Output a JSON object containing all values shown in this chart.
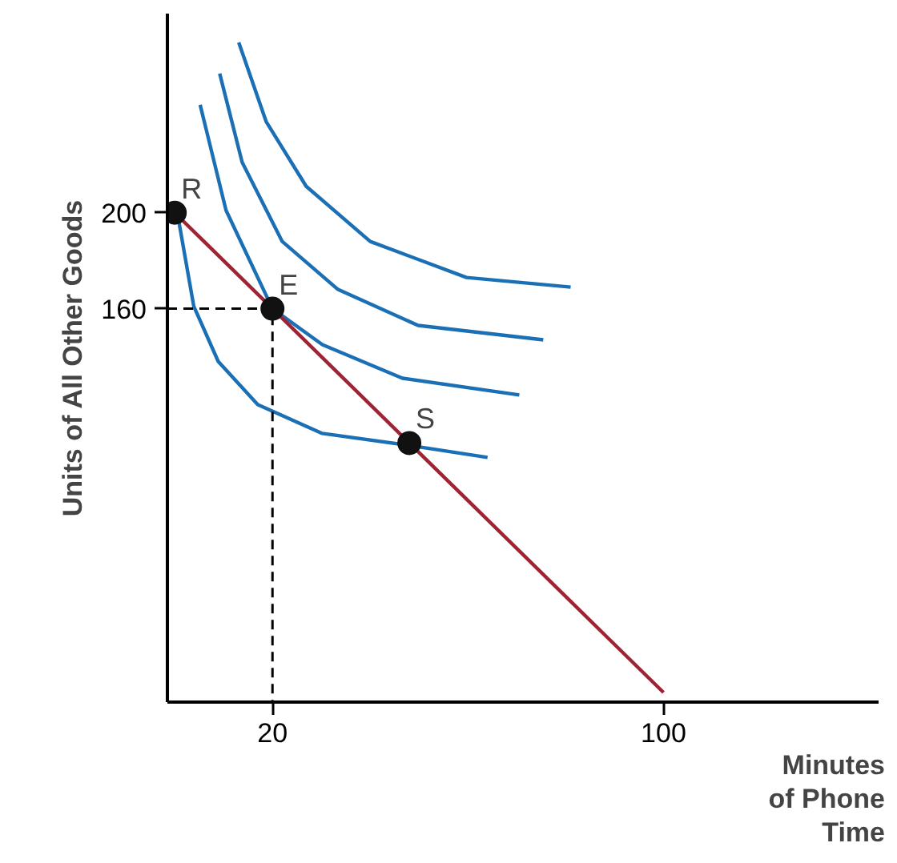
{
  "chart_data": {
    "type": "line",
    "xlabel": "Minutes of Phone Time",
    "ylabel": "Units of All Other Goods",
    "xlim": [
      -1.5,
      144
    ],
    "ylim": [
      -4,
      283
    ],
    "xticks": [
      20,
      100
    ],
    "yticks": [
      160,
      200
    ],
    "grid": false,
    "series": [
      {
        "color": "#1a6fb5",
        "x": [
          0.7,
          3.9,
          8.9,
          17,
          30.2,
          48,
          64
        ],
        "values": [
          198,
          161,
          138,
          120,
          108,
          103,
          98
        ]
      },
      {
        "color": "#1a6fb5",
        "x": [
          5.2,
          10.5,
          20,
          30.2,
          46.6,
          70.5
        ],
        "values": [
          245,
          201,
          160,
          145,
          131,
          124
        ]
      },
      {
        "color": "#1a6fb5",
        "x": [
          9.2,
          13.8,
          22,
          33.4,
          49.8,
          75.4
        ],
        "values": [
          258,
          221,
          188,
          168,
          153,
          147
        ]
      },
      {
        "color": "#1a6fb5",
        "x": [
          13.1,
          18.7,
          26.9,
          40,
          59.7,
          81
        ],
        "values": [
          271,
          238,
          211,
          188,
          173,
          169
        ]
      },
      {
        "color": "#9e2333",
        "x": [
          0,
          100
        ],
        "values": [
          200,
          0
        ]
      },
      {
        "color": "#000000",
        "line_style": "dashed",
        "x": [
          -1.5,
          20,
          20
        ],
        "values": [
          160,
          160,
          -4
        ]
      },
      {
        "type": "scatter",
        "marker": "circle",
        "color": "#111111",
        "x": [
          0,
          20,
          48
        ],
        "values": [
          200,
          160,
          104
        ]
      }
    ],
    "annotations": [
      {
        "text": "R",
        "x": 0,
        "y": 200
      },
      {
        "text": "E",
        "x": 20,
        "y": 160
      },
      {
        "text": "S",
        "x": 48,
        "y": 104
      }
    ]
  }
}
